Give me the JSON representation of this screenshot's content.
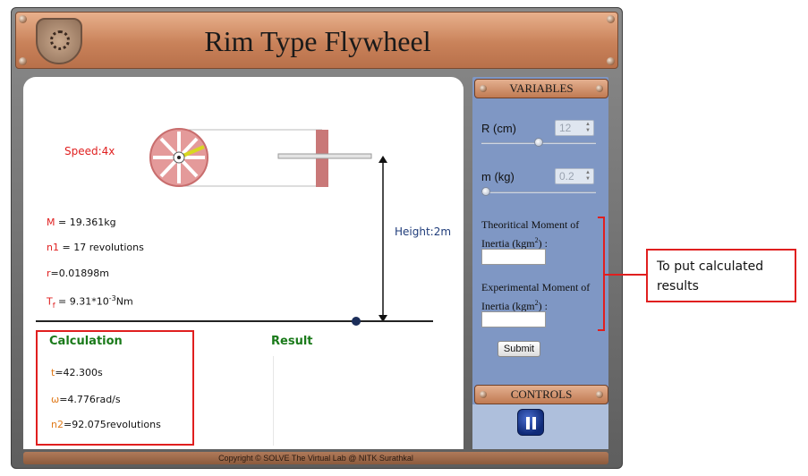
{
  "window": {
    "title": "Rim Type Flywheel"
  },
  "sim": {
    "speed": "Speed:4x",
    "height": "Height:2m",
    "readings": {
      "m_key": "M",
      "m_val": " = 19.361kg",
      "n1_key": "n1",
      "n1_val": " = 17 revolutions",
      "r_key": "r",
      "r_val": "=0.01898m",
      "tf_key": "T",
      "tf_sub": "f",
      "tf_val_pre": " = 9.31*10",
      "tf_exp": "-3",
      "tf_unit": "Nm"
    },
    "calculation": {
      "title": "Calculation",
      "t_key": "t",
      "t_val": "=42.300s",
      "w_key": "ω",
      "w_val": "=4.776rad/s",
      "n2_key": "n2",
      "n2_val": "=92.075revolutions"
    },
    "result_title": "Result"
  },
  "variables": {
    "header": "VARIABLES",
    "r_label": "R (cm)",
    "r_value": "12",
    "r_level": 0.5,
    "m_label": "m (kg)",
    "m_value": "0.2",
    "m_level": 0.0,
    "theo_label_pre": "Theoritical Moment of Inertia (kgm",
    "theo_label_post": ") :",
    "exp_label_pre": "Experimental Moment of Inertia (kgm",
    "exp_label_post": ") :",
    "sup": "2",
    "submit": "Submit"
  },
  "controls": {
    "header": "CONTROLS"
  },
  "footer": "Copyright © SOLVE The Virtual Lab @ NITK Surathkal",
  "annotation": {
    "text": "To put calculated results"
  },
  "colors": {
    "header": "#c9825a",
    "side_panel": "#7f97c4",
    "highlight": "#e01f1f",
    "calc_green": "#1a7a1a"
  },
  "icons": {
    "pause": "pause-icon",
    "logo": "institute-logo"
  }
}
